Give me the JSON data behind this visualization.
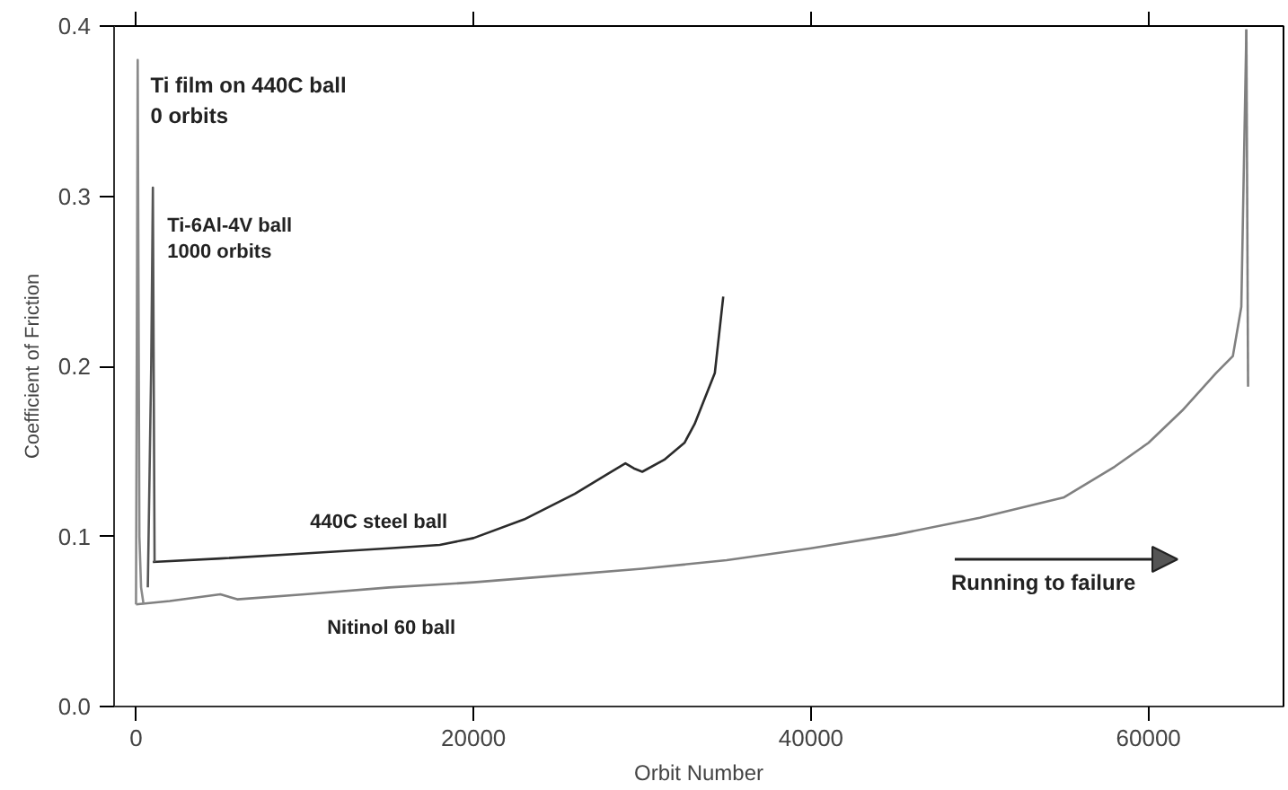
{
  "chart_data": {
    "type": "line",
    "xlabel": "Orbit Number",
    "ylabel": "Coefficient of Friction",
    "xlim": [
      -1300,
      68000
    ],
    "ylim": [
      0,
      0.4
    ],
    "xticks": [
      0,
      20000,
      40000,
      60000
    ],
    "yticks": [
      {
        "value": 0,
        "label": "0.0"
      },
      0.1,
      0.2,
      0.3,
      0.4
    ],
    "grid": false,
    "legend": false,
    "line_style": "solid",
    "series": [
      {
        "name": "440C steel ball",
        "color": "#2b2b2b",
        "x": [
          1000,
          5000,
          10000,
          15000,
          18000,
          20000,
          23000,
          26000,
          28000,
          29000,
          29500,
          30000,
          31300,
          32500,
          33100,
          34300,
          34800
        ],
        "values": [
          0.085,
          0.087,
          0.09,
          0.093,
          0.095,
          0.099,
          0.11,
          0.125,
          0.137,
          0.143,
          0.14,
          0.138,
          0.145,
          0.155,
          0.166,
          0.196,
          0.241
        ]
      },
      {
        "name": "Nitinol 60 ball",
        "color": "#808080",
        "x": [
          0,
          2000,
          5000,
          6000,
          10000,
          15000,
          20000,
          25000,
          30000,
          35000,
          40000,
          45000,
          50000,
          55000,
          58000,
          60000,
          62000,
          64000,
          65000,
          65500,
          65800
        ],
        "values": [
          0.06,
          0.062,
          0.066,
          0.063,
          0.066,
          0.07,
          0.073,
          0.077,
          0.081,
          0.086,
          0.093,
          0.101,
          0.111,
          0.123,
          0.141,
          0.155,
          0.174,
          0.196,
          0.206,
          0.235,
          0.398
        ]
      },
      {
        "color": "#808080",
        "x": [
          65900,
          65800
        ],
        "values": [
          0.188,
          0.398
        ]
      },
      {
        "color": "#8a8a8a",
        "x": [
          0,
          100,
          200,
          300,
          450
        ],
        "values": [
          0.06,
          0.38,
          0.1,
          0.07,
          0.06
        ]
      },
      {
        "color": "#555555",
        "x": [
          700,
          800,
          900,
          1000,
          1100
        ],
        "values": [
          0.07,
          0.135,
          0.2,
          0.305,
          0.085
        ]
      }
    ],
    "annotations": [
      {
        "text": "Ti film on 440C ball\n0 orbits",
        "x": 0,
        "y": 0.38
      },
      {
        "text": "Ti-6Al-4V ball\n1000 orbits",
        "x": 1000,
        "y": 0.305
      },
      "Running to failure"
    ]
  }
}
